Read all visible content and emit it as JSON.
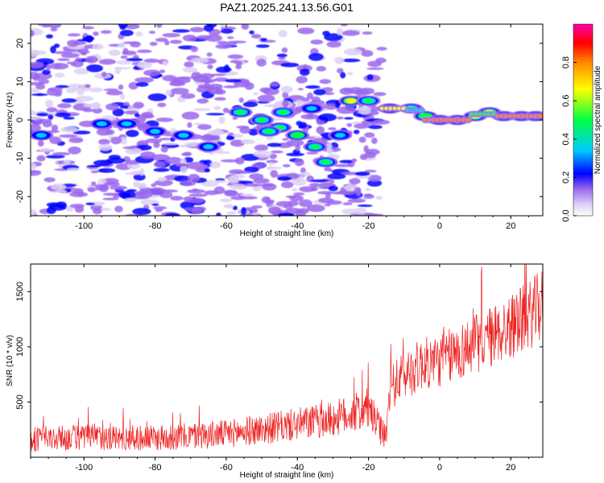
{
  "title": "PAZ1.2025.241.13.56.G01",
  "colors": {
    "snr_line": "#ee2222",
    "colormap": [
      "#ffffff",
      "#dcd0f5",
      "#9a66ee",
      "#6a00ff",
      "#0000ff",
      "#00ccff",
      "#00ff66",
      "#ffff00",
      "#ff8800",
      "#ff0000",
      "#ff00aa"
    ]
  },
  "chart_data": [
    {
      "type": "heatmap",
      "title": "PAZ1.2025.241.13.56.G01",
      "xlabel": "Height of straight line (km)",
      "ylabel": "Frequency (Hz)",
      "xlim": [
        -115,
        29
      ],
      "ylim": [
        -25,
        25
      ],
      "x_ticks": [
        -100,
        -80,
        -60,
        -40,
        -20,
        0,
        20
      ],
      "x_tick_labels": [
        "-100",
        "-80",
        "-60",
        "-40",
        "-20",
        "0",
        "20"
      ],
      "y_ticks": [
        -20,
        -10,
        0,
        10,
        20
      ],
      "y_tick_labels": [
        "-20",
        "-10",
        "0",
        "10",
        "20"
      ],
      "colorbar": {
        "label": "Normalized spectral amplitude",
        "range": [
          0,
          1
        ],
        "ticks": [
          0.0,
          0.2,
          0.4,
          0.6,
          0.8
        ],
        "tick_labels": [
          "0.0",
          "0.2",
          "0.4",
          "0.6",
          "0.8"
        ]
      },
      "ridge": [
        {
          "x": -112,
          "f": -4,
          "a": 0.25
        },
        {
          "x": -95,
          "f": -1,
          "a": 0.3
        },
        {
          "x": -88,
          "f": -1,
          "a": 0.3
        },
        {
          "x": -80,
          "f": -3,
          "a": 0.3
        },
        {
          "x": -72,
          "f": -4,
          "a": 0.3
        },
        {
          "x": -65,
          "f": -7,
          "a": 0.25
        },
        {
          "x": -56,
          "f": 2,
          "a": 0.35
        },
        {
          "x": -50,
          "f": 0,
          "a": 0.45
        },
        {
          "x": -45,
          "f": -2,
          "a": 0.4
        },
        {
          "x": -40,
          "f": -4,
          "a": 0.5
        },
        {
          "x": -35,
          "f": -7,
          "a": 0.4
        },
        {
          "x": -32,
          "f": -11,
          "a": 0.4
        },
        {
          "x": -48,
          "f": -3,
          "a": 0.45
        },
        {
          "x": -44,
          "f": 2,
          "a": 0.35
        },
        {
          "x": -36,
          "f": 3,
          "a": 0.3
        },
        {
          "x": -28,
          "f": -4,
          "a": 0.3
        },
        {
          "x": -25,
          "f": 5,
          "a": 0.55
        },
        {
          "x": -20,
          "f": 5,
          "a": 0.4
        },
        {
          "x": -14,
          "f": 3,
          "a": 0.8
        },
        {
          "x": -8,
          "f": 3,
          "a": 0.45
        },
        {
          "x": -4,
          "f": 1,
          "a": 0.5
        },
        {
          "x": 0,
          "f": 0,
          "a": 0.95
        },
        {
          "x": 5,
          "f": 0,
          "a": 0.9
        },
        {
          "x": 10,
          "f": 1,
          "a": 0.6
        },
        {
          "x": 14,
          "f": 2,
          "a": 0.55
        },
        {
          "x": 18,
          "f": 1,
          "a": 0.75
        },
        {
          "x": 23,
          "f": 1,
          "a": 0.85
        },
        {
          "x": 27,
          "f": 1,
          "a": 0.9
        }
      ]
    },
    {
      "type": "line",
      "xlabel": "Height of straight line (km)",
      "ylabel": "SNR (10 * v/v)",
      "xlim": [
        -115,
        29
      ],
      "ylim": [
        0,
        1750
      ],
      "x_ticks": [
        -100,
        -80,
        -60,
        -40,
        -20,
        0,
        20
      ],
      "x_tick_labels": [
        "-100",
        "-80",
        "-60",
        "-40",
        "-20",
        "0",
        "20"
      ],
      "y_ticks": [
        500,
        1000,
        1500
      ],
      "y_tick_labels": [
        "500",
        "1000",
        "1500"
      ],
      "series": [
        {
          "name": "SNR",
          "x": [
            -115,
            -100,
            -80,
            -60,
            -45,
            -30,
            -20,
            -16,
            -15,
            -14,
            -10,
            -5,
            0,
            5,
            10,
            15,
            20,
            25,
            29
          ],
          "y": [
            150,
            170,
            160,
            200,
            260,
            330,
            420,
            200,
            180,
            600,
            720,
            820,
            850,
            920,
            1000,
            1070,
            1150,
            1250,
            1350
          ]
        }
      ]
    }
  ]
}
